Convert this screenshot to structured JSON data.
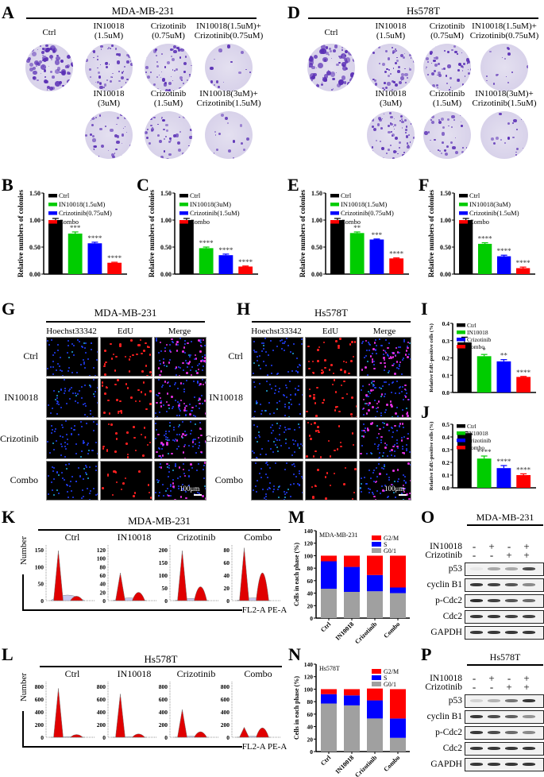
{
  "panels": {
    "A": {
      "label": "A",
      "cell_line": "MDA-MB-231",
      "dishes": [
        {
          "caption": "Ctrl",
          "density": "high"
        },
        {
          "caption": "IN10018\n(1.5uM)",
          "density": "med"
        },
        {
          "caption": "Crizotinib\n(0.75uM)",
          "density": "med"
        },
        {
          "caption": "IN10018(1.5uM)+\nCrizotinib(0.75uM)",
          "density": "low"
        },
        {
          "caption": "IN10018\n(3uM)",
          "density": "med-low"
        },
        {
          "caption": "Crizotinib\n(1.5uM)",
          "density": "med-low"
        },
        {
          "caption": "IN10018(3uM)+\nCrizotinib(1.5uM)",
          "density": "low"
        }
      ]
    },
    "D": {
      "label": "D",
      "cell_line": "Hs578T",
      "dishes": [
        {
          "caption": "Ctrl",
          "density": "high"
        },
        {
          "caption": "IN10018\n(1.5uM)",
          "density": "med"
        },
        {
          "caption": "Crizotinib\n(0.75uM)",
          "density": "med"
        },
        {
          "caption": "IN10018(1.5uM)+\nCrizotinib(0.75uM)",
          "density": "low"
        },
        {
          "caption": "IN10018\n(3uM)",
          "density": "med"
        },
        {
          "caption": "Crizotinib\n(1.5uM)",
          "density": "med-low"
        },
        {
          "caption": "IN10018(3uM)+\nCrizotinib(1.5uM)",
          "density": "low"
        }
      ]
    },
    "G": {
      "label": "G",
      "cell_line": "MDA-MB-231",
      "columns": [
        "Hoechst33342",
        "EdU",
        "Merge"
      ],
      "rows": [
        "Ctrl",
        "IN10018",
        "Crizotinib",
        "Combo"
      ],
      "scale_bar": "100μm"
    },
    "H": {
      "label": "H",
      "cell_line": "Hs578T",
      "columns": [
        "Hoechst33342",
        "EdU",
        "Merge"
      ],
      "rows": [
        "Ctrl",
        "IN10018",
        "Crizotinib",
        "Combo"
      ],
      "scale_bar": "100μm"
    },
    "K": {
      "label": "K",
      "cell_line": "MDA-MB-231",
      "samples": [
        "Ctrl",
        "IN10018",
        "Crizotinib",
        "Combo"
      ],
      "ylabel": "Number",
      "xlabel": "FL2-A PE-A",
      "yticks": [
        [
          "0",
          "50",
          "100",
          "150"
        ],
        [
          "0",
          "20",
          "40",
          "60",
          "80",
          "100",
          "120"
        ],
        [
          "0",
          "50",
          "100",
          "150",
          "200"
        ],
        [
          "0",
          "20",
          "40",
          "60",
          "80"
        ]
      ]
    },
    "L": {
      "label": "L",
      "cell_line": "Hs578T",
      "samples": [
        "Ctrl",
        "IN10018",
        "Crizotinib",
        "Combo"
      ],
      "ylabel": "Number",
      "xlabel": "FL2-A PE-A",
      "yticks": [
        [
          "0",
          "200",
          "400",
          "600",
          "800"
        ],
        [
          "0",
          "200",
          "400",
          "600",
          "800"
        ],
        [
          "0",
          "200",
          "400",
          "600",
          "800"
        ],
        [
          "0",
          "200",
          "400",
          "600",
          "800"
        ]
      ]
    },
    "O": {
      "label": "O",
      "cell_line": "MDA-MB-231",
      "treatments": [
        {
          "name": "IN10018",
          "signs": [
            "-",
            "+",
            "-",
            "+"
          ]
        },
        {
          "name": "Crizotinib",
          "signs": [
            "-",
            "-",
            "+",
            "+"
          ]
        }
      ],
      "proteins": [
        "p53",
        "cyclin B1",
        "p-Cdc2",
        "Cdc2",
        "GAPDH"
      ],
      "band_intensity": [
        [
          0.05,
          0.35,
          0.35,
          0.8
        ],
        [
          0.9,
          0.85,
          0.75,
          0.5
        ],
        [
          0.95,
          0.85,
          0.75,
          0.65
        ],
        [
          0.9,
          0.9,
          0.85,
          0.85
        ],
        [
          0.9,
          0.9,
          0.9,
          0.9
        ]
      ]
    },
    "P": {
      "label": "P",
      "cell_line": "Hs578T",
      "treatments": [
        {
          "name": "IN10018",
          "signs": [
            "-",
            "+",
            "-",
            "+"
          ]
        },
        {
          "name": "Crizotinib",
          "signs": [
            "-",
            "-",
            "+",
            "+"
          ]
        }
      ],
      "proteins": [
        "p53",
        "cyclin B1",
        "p-Cdc2",
        "Cdc2",
        "GAPDH"
      ],
      "band_intensity": [
        [
          0.15,
          0.3,
          0.6,
          0.9
        ],
        [
          0.9,
          0.8,
          0.7,
          0.45
        ],
        [
          0.9,
          0.8,
          0.65,
          0.5
        ],
        [
          0.9,
          0.9,
          0.9,
          0.9
        ],
        [
          0.9,
          0.9,
          0.9,
          0.9
        ]
      ]
    }
  },
  "chart_data": [
    {
      "id": "B",
      "type": "bar",
      "title": "",
      "ylabel": "Relative numbers of colonies",
      "ylim": [
        0,
        1.5
      ],
      "yticks": [
        "0.00",
        "0.50",
        "1.00",
        "1.50"
      ],
      "categories": [
        "Ctrl",
        "IN10018(1.5uM)",
        "Crizotinib(0.75uM)",
        "Combo"
      ],
      "values": [
        1.0,
        0.75,
        0.57,
        0.21
      ],
      "errors": [
        0.03,
        0.03,
        0.02,
        0.01
      ],
      "significance": [
        "",
        "***",
        "****",
        "****"
      ],
      "colors": [
        "#000000",
        "#00cc00",
        "#0000ff",
        "#ff0000"
      ],
      "legend": "top-right"
    },
    {
      "id": "C",
      "type": "bar",
      "title": "",
      "ylabel": "Relative numbers of colonies",
      "ylim": [
        0,
        1.5
      ],
      "yticks": [
        "0.00",
        "0.50",
        "1.00",
        "1.50"
      ],
      "categories": [
        "Ctrl",
        "IN10018(3uM)",
        "Crizotinib(1.5uM)",
        "Combo"
      ],
      "values": [
        1.0,
        0.48,
        0.35,
        0.14
      ],
      "errors": [
        0.03,
        0.02,
        0.02,
        0.01
      ],
      "significance": [
        "",
        "****",
        "****",
        "****"
      ],
      "colors": [
        "#000000",
        "#00cc00",
        "#0000ff",
        "#ff0000"
      ],
      "legend": "top-right"
    },
    {
      "id": "E",
      "type": "bar",
      "title": "",
      "ylabel": "Relative numbers of colonies",
      "ylim": [
        0,
        1.5
      ],
      "yticks": [
        "0.00",
        "0.50",
        "1.00",
        "1.50"
      ],
      "categories": [
        "Ctrl",
        "IN10018(1.5uM)",
        "Crizotinib(0.75uM)",
        "Combo"
      ],
      "values": [
        1.0,
        0.76,
        0.64,
        0.29
      ],
      "errors": [
        0.03,
        0.02,
        0.01,
        0.01
      ],
      "significance": [
        "",
        "**",
        "***",
        "****"
      ],
      "colors": [
        "#000000",
        "#00cc00",
        "#0000ff",
        "#ff0000"
      ],
      "legend": "top-right"
    },
    {
      "id": "F",
      "type": "bar",
      "title": "",
      "ylabel": "Relative numbers of colonies",
      "ylim": [
        0,
        1.5
      ],
      "yticks": [
        "0.00",
        "0.50",
        "1.00",
        "1.50"
      ],
      "categories": [
        "Ctrl",
        "IN10018(3uM)",
        "Crizotinib(1.5uM)",
        "Combo"
      ],
      "values": [
        1.0,
        0.56,
        0.33,
        0.11
      ],
      "errors": [
        0.03,
        0.02,
        0.02,
        0.02
      ],
      "significance": [
        "",
        "****",
        "****",
        "****"
      ],
      "colors": [
        "#000000",
        "#00cc00",
        "#0000ff",
        "#ff0000"
      ],
      "legend": "top-right"
    },
    {
      "id": "I",
      "type": "bar",
      "title": "",
      "ylabel": "Relative EdU-positive cells (%)",
      "ylim": [
        0,
        0.4
      ],
      "yticks": [
        "0.0",
        "0.1",
        "0.2",
        "0.3",
        "0.4"
      ],
      "categories": [
        "Ctrl",
        "IN10018",
        "Crizotinib",
        "Combo"
      ],
      "values": [
        0.29,
        0.21,
        0.18,
        0.09
      ],
      "errors": [
        0.03,
        0.01,
        0.01,
        0.003
      ],
      "significance": [
        "",
        "*",
        "**",
        "****"
      ],
      "colors": [
        "#000000",
        "#00cc00",
        "#0000ff",
        "#ff0000"
      ],
      "legend": "top-right"
    },
    {
      "id": "J",
      "type": "bar",
      "title": "",
      "ylabel": "Relative EdU-positive cells (%)",
      "ylim": [
        0,
        0.5
      ],
      "yticks": [
        "0.0",
        "0.1",
        "0.2",
        "0.3",
        "0.4",
        "0.5"
      ],
      "categories": [
        "Ctrl",
        "IN10018",
        "Crizotinib",
        "Combo"
      ],
      "values": [
        0.43,
        0.23,
        0.155,
        0.1
      ],
      "errors": [
        0.01,
        0.02,
        0.02,
        0.01
      ],
      "significance": [
        "",
        "****",
        "****",
        "****"
      ],
      "colors": [
        "#000000",
        "#00cc00",
        "#0000ff",
        "#ff0000"
      ],
      "legend": "top-right"
    },
    {
      "id": "M",
      "type": "bar",
      "stacked": true,
      "title": "MDA-MB-231",
      "ylabel": "Cells in each phase (%)",
      "ylim": [
        0,
        140
      ],
      "yticks": [
        "0",
        "20",
        "40",
        "60",
        "80",
        "100",
        "120",
        "140"
      ],
      "categories": [
        "Ctrl",
        "IN10018",
        "Crizotinib",
        "Combo"
      ],
      "series": [
        {
          "name": "G0/1",
          "color": "#a0a0a0",
          "values": [
            47,
            42,
            43,
            40
          ]
        },
        {
          "name": "S",
          "color": "#0000ff",
          "values": [
            44,
            40,
            26,
            9
          ]
        },
        {
          "name": "G2/M",
          "color": "#ff0000",
          "values": [
            9,
            18,
            31,
            51
          ]
        }
      ],
      "legend": "top-right"
    },
    {
      "id": "N",
      "type": "bar",
      "stacked": true,
      "title": "Hs578T",
      "ylabel": "Cells in each phase (%)",
      "ylim": [
        0,
        140
      ],
      "yticks": [
        "0",
        "20",
        "40",
        "60",
        "80",
        "100",
        "120",
        "140"
      ],
      "categories": [
        "Ctrl",
        "IN10018",
        "Crizotinib",
        "Combo"
      ],
      "series": [
        {
          "name": "G0/1",
          "color": "#a0a0a0",
          "values": [
            77,
            74,
            53,
            22
          ]
        },
        {
          "name": "S",
          "color": "#0000ff",
          "values": [
            15,
            16,
            29,
            31
          ]
        },
        {
          "name": "G2/M",
          "color": "#ff0000",
          "values": [
            8,
            10,
            19,
            47
          ]
        }
      ],
      "legend": "top-right"
    }
  ]
}
